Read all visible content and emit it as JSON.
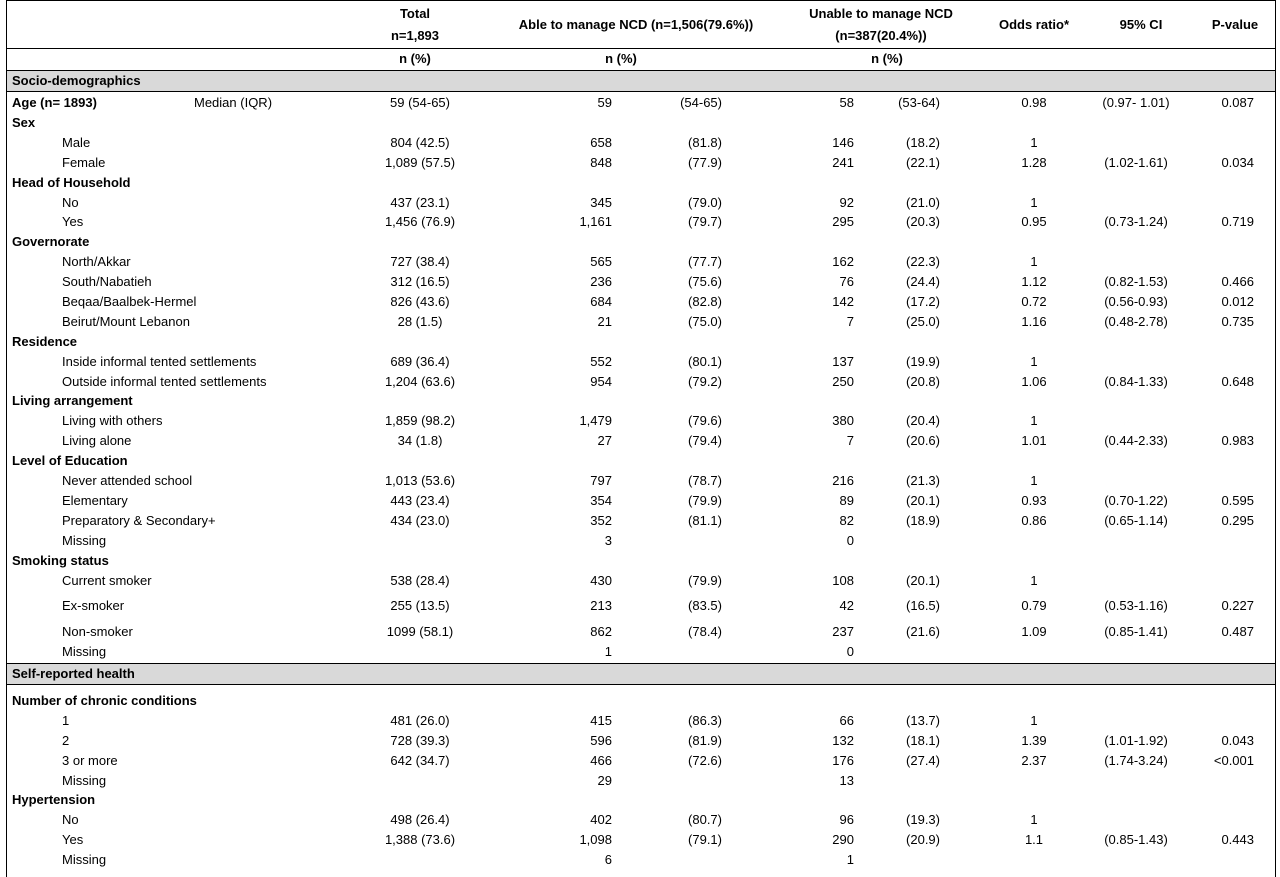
{
  "header": {
    "total_l1": "Total",
    "total_l2": "n=1,893",
    "able": "Able to manage NCD (n=1,506(79.6%))",
    "unable_l1": "Unable to manage NCD",
    "unable_l2": "(n=387(20.4%))",
    "or": "Odds ratio*",
    "ci": "95% CI",
    "p": "P-value",
    "npct_total": "n (%)",
    "npct_able": "n (%)",
    "npct_unable": "n (%)"
  },
  "sections": {
    "socio": "Socio-demographics",
    "health": "Self-reported health"
  },
  "rows": [
    {
      "label": "Age (n= 1893)",
      "extra": "Median (IQR)",
      "bold": true,
      "total": "59 (54-65)",
      "an": "59",
      "ap": "(54-65)",
      "un": "58",
      "up": "(53-64)",
      "or": "0.98",
      "ci": "(0.97- 1.01)",
      "p": "0.087"
    },
    {
      "label": "Sex",
      "bold": true
    },
    {
      "label": "Male",
      "indent": true,
      "total": "804 (42.5)",
      "an": "658",
      "ap": "(81.8)",
      "un": "146",
      "up": "(18.2)",
      "or": "1"
    },
    {
      "label": "Female",
      "indent": true,
      "total": "1,089 (57.5)",
      "an": "848",
      "ap": "(77.9)",
      "un": "241",
      "up": "(22.1)",
      "or": "1.28",
      "ci": "(1.02-1.61)",
      "p": "0.034"
    },
    {
      "label": "Head of Household",
      "bold": true
    },
    {
      "label": "No",
      "indent": true,
      "total": "437 (23.1)",
      "an": "345",
      "ap": "(79.0)",
      "un": "92",
      "up": "(21.0)",
      "or": "1"
    },
    {
      "label": "Yes",
      "indent": true,
      "total": "1,456 (76.9)",
      "an": "1,161",
      "ap": "(79.7)",
      "un": "295",
      "up": "(20.3)",
      "or": "0.95",
      "ci": "(0.73-1.24)",
      "p": "0.719"
    },
    {
      "label": "Governorate",
      "bold": true
    },
    {
      "label": "North/Akkar",
      "indent": true,
      "total": "727 (38.4)",
      "an": "565",
      "ap": "(77.7)",
      "un": "162",
      "up": "(22.3)",
      "or": "1"
    },
    {
      "label": "South/Nabatieh",
      "indent": true,
      "total": "312 (16.5)",
      "an": "236",
      "ap": "(75.6)",
      "un": "76",
      "up": "(24.4)",
      "or": "1.12",
      "ci": "(0.82-1.53)",
      "p": "0.466"
    },
    {
      "label": "Beqaa/Baalbek-Hermel",
      "indent": true,
      "total": "826 (43.6)",
      "an": "684",
      "ap": "(82.8)",
      "un": "142",
      "up": "(17.2)",
      "or": "0.72",
      "ci": "(0.56-0.93)",
      "p": "0.012"
    },
    {
      "label": "Beirut/Mount Lebanon",
      "indent": true,
      "total": "28 (1.5)",
      "an": "21",
      "ap": "(75.0)",
      "un": "7",
      "up": "(25.0)",
      "or": "1.16",
      "ci": "(0.48-2.78)",
      "p": "0.735"
    },
    {
      "label": "Residence",
      "bold": true
    },
    {
      "label": "Inside informal tented settlements",
      "indent": true,
      "total": "689 (36.4)",
      "an": "552",
      "ap": "(80.1)",
      "un": "137",
      "up": "(19.9)",
      "or": "1"
    },
    {
      "label": "Outside informal tented settlements",
      "indent": true,
      "total": "1,204 (63.6)",
      "an": "954",
      "ap": "(79.2)",
      "un": "250",
      "up": "(20.8)",
      "or": "1.06",
      "ci": "(0.84-1.33)",
      "p": "0.648"
    },
    {
      "label": "Living arrangement",
      "bold": true
    },
    {
      "label": "Living with others",
      "indent": true,
      "total": "1,859 (98.2)",
      "an": "1,479",
      "ap": "(79.6)",
      "un": "380",
      "up": "(20.4)",
      "or": "1"
    },
    {
      "label": "Living alone",
      "indent": true,
      "total": "34 (1.8)",
      "an": "27",
      "ap": "(79.4)",
      "un": "7",
      "up": "(20.6)",
      "or": "1.01",
      "ci": "(0.44-2.33)",
      "p": "0.983"
    },
    {
      "label": "Level of Education",
      "bold": true
    },
    {
      "label": "Never attended school",
      "indent": true,
      "total": "1,013 (53.6)",
      "an": "797",
      "ap": "(78.7)",
      "un": "216",
      "up": "(21.3)",
      "or": "1"
    },
    {
      "label": "Elementary",
      "indent": true,
      "total": "443 (23.4)",
      "an": "354",
      "ap": "(79.9)",
      "un": "89",
      "up": "(20.1)",
      "or": "0.93",
      "ci": "(0.70-1.22)",
      "p": "0.595"
    },
    {
      "label": "Preparatory & Secondary+",
      "indent": true,
      "total": "434 (23.0)",
      "an": "352",
      "ap": "(81.1)",
      "un": "82",
      "up": "(18.9)",
      "or": "0.86",
      "ci": "(0.65-1.14)",
      "p": "0.295"
    },
    {
      "label": "Missing",
      "indent": true,
      "an": "3",
      "un": "0"
    },
    {
      "label": "Smoking status",
      "bold": true
    },
    {
      "label": "Current smoker",
      "indent": true,
      "total": "538 (28.4)",
      "an": "430",
      "ap": "(79.9)",
      "un": "108",
      "up": "(20.1)",
      "or": "1"
    },
    {
      "label": "Ex-smoker",
      "indent": true,
      "total": "255 (13.5)",
      "an": "213",
      "ap": "(83.5)",
      "un": "42",
      "up": "(16.5)",
      "or": "0.79",
      "ci": "(0.53-1.16)",
      "p": "0.227"
    },
    {
      "label": "Non-smoker",
      "indent": true,
      "total": "1099 (58.1)",
      "an": "862",
      "ap": "(78.4)",
      "un": "237",
      "up": "(21.6)",
      "or": "1.09",
      "ci": "(0.85-1.41)",
      "p": "0.487"
    },
    {
      "label": "Missing",
      "indent": true,
      "an": "1",
      "un": "0"
    },
    {
      "label": "Number of chronic conditions",
      "bold": true
    },
    {
      "label": "1",
      "indent": true,
      "total": "481 (26.0)",
      "an": "415",
      "ap": "(86.3)",
      "un": "66",
      "up": "(13.7)",
      "or": "1"
    },
    {
      "label": "2",
      "indent": true,
      "total": "728 (39.3)",
      "an": "596",
      "ap": "(81.9)",
      "un": "132",
      "up": "(18.1)",
      "or": "1.39",
      "ci": "(1.01-1.92)",
      "p": "0.043"
    },
    {
      "label": "3 or more",
      "indent": true,
      "total": "642 (34.7)",
      "an": "466",
      "ap": "(72.6)",
      "un": "176",
      "up": "(27.4)",
      "or": "2.37",
      "ci": "(1.74-3.24)",
      "p": "<0.001"
    },
    {
      "label": "Missing",
      "indent": true,
      "an": "29",
      "un": "13"
    },
    {
      "label": "Hypertension",
      "bold": true
    },
    {
      "label": "No",
      "indent": true,
      "total": "498 (26.4)",
      "an": "402",
      "ap": "(80.7)",
      "un": "96",
      "up": "(19.3)",
      "or": "1"
    },
    {
      "label": "Yes",
      "indent": true,
      "total": "1,388 (73.6)",
      "an": "1,098",
      "ap": "(79.1)",
      "un": "290",
      "up": "(20.9)",
      "or": "1.1",
      "ci": "(0.85-1.43)",
      "p": "0.443"
    },
    {
      "label": "Missing",
      "indent": true,
      "an": "6",
      "un": "1"
    }
  ]
}
